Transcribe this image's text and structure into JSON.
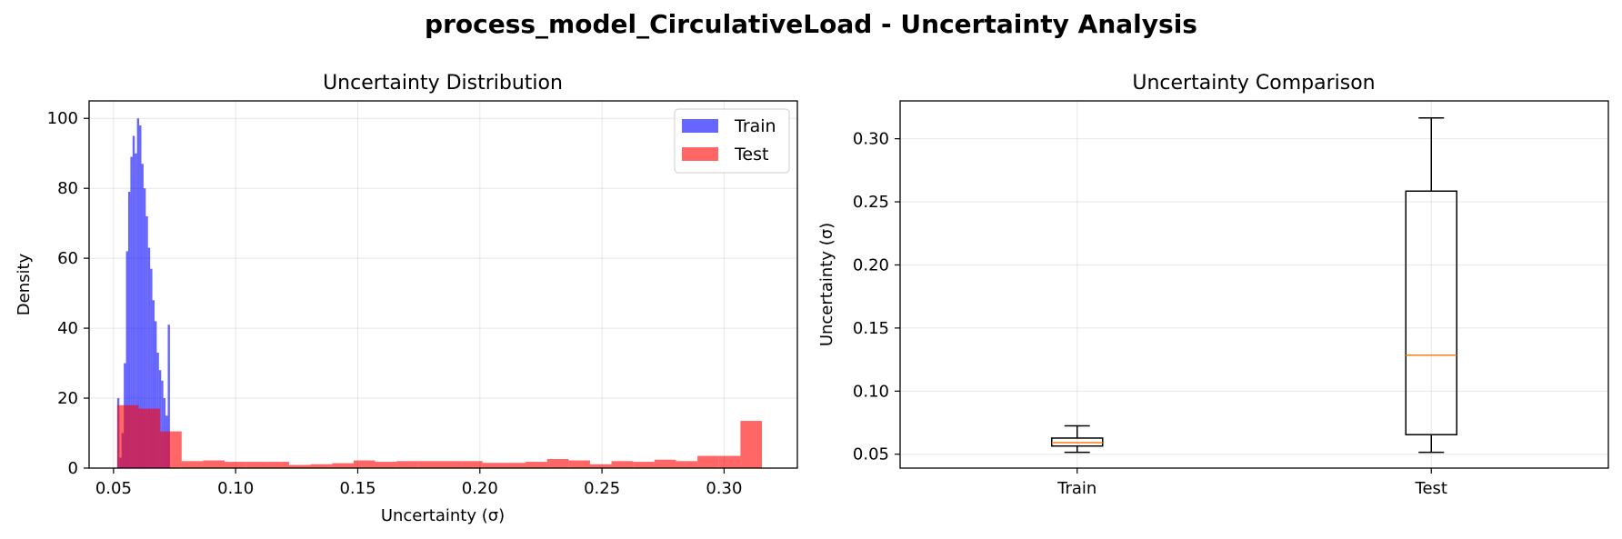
{
  "figure": {
    "suptitle": "process_model_CirculativeLoad - Uncertainty Analysis"
  },
  "chart_data": [
    {
      "type": "histogram",
      "title": "Uncertainty Distribution",
      "xlabel": "Uncertainty (σ)",
      "ylabel": "Density",
      "xlim": [
        0.04,
        0.33
      ],
      "ylim": [
        0,
        105
      ],
      "xticks": [
        "0.05",
        "0.10",
        "0.15",
        "0.20",
        "0.25",
        "0.30"
      ],
      "yticks": [
        "0",
        "20",
        "40",
        "60",
        "80",
        "100"
      ],
      "grid": true,
      "legend": "top-right",
      "series": [
        {
          "name": "Train",
          "color": "#0000ff",
          "alpha": 0.6,
          "bins": [
            [
              0.0515,
              0.0524,
              20
            ],
            [
              0.0524,
              0.0533,
              3
            ],
            [
              0.0533,
              0.0542,
              10
            ],
            [
              0.0542,
              0.0551,
              30
            ],
            [
              0.0551,
              0.056,
              62
            ],
            [
              0.056,
              0.0569,
              79
            ],
            [
              0.0569,
              0.0578,
              89
            ],
            [
              0.0578,
              0.0587,
              95
            ],
            [
              0.0587,
              0.0596,
              90
            ],
            [
              0.0596,
              0.0605,
              100
            ],
            [
              0.0605,
              0.0614,
              98
            ],
            [
              0.0614,
              0.0623,
              87
            ],
            [
              0.0623,
              0.0632,
              80
            ],
            [
              0.0632,
              0.0641,
              72
            ],
            [
              0.0641,
              0.065,
              63
            ],
            [
              0.065,
              0.0659,
              57
            ],
            [
              0.0659,
              0.0668,
              48
            ],
            [
              0.0668,
              0.0677,
              42
            ],
            [
              0.0677,
              0.0686,
              33
            ],
            [
              0.0686,
              0.0695,
              28
            ],
            [
              0.0695,
              0.0704,
              25
            ],
            [
              0.0704,
              0.0713,
              20
            ],
            [
              0.0713,
              0.0722,
              15
            ],
            [
              0.0722,
              0.0731,
              41
            ]
          ]
        },
        {
          "name": "Test",
          "color": "#ff0000",
          "alpha": 0.6,
          "bins": [
            [
              0.0515,
              0.0603,
              18
            ],
            [
              0.0603,
              0.0691,
              17
            ],
            [
              0.0691,
              0.0779,
              10.5
            ],
            [
              0.0779,
              0.0867,
              2
            ],
            [
              0.0867,
              0.0955,
              2.2
            ],
            [
              0.0955,
              0.1043,
              1.8
            ],
            [
              0.1043,
              0.1131,
              1.8
            ],
            [
              0.1131,
              0.1219,
              1.8
            ],
            [
              0.1219,
              0.1307,
              0.9
            ],
            [
              0.1307,
              0.1395,
              1.1
            ],
            [
              0.1395,
              0.1483,
              1.4
            ],
            [
              0.1483,
              0.1571,
              2.2
            ],
            [
              0.1571,
              0.1659,
              1.8
            ],
            [
              0.1659,
              0.1747,
              2.0
            ],
            [
              0.1747,
              0.1835,
              2.0
            ],
            [
              0.1835,
              0.1923,
              2.0
            ],
            [
              0.1923,
              0.2011,
              2.0
            ],
            [
              0.2011,
              0.2099,
              1.5
            ],
            [
              0.2099,
              0.2187,
              1.5
            ],
            [
              0.2187,
              0.2275,
              1.8
            ],
            [
              0.2275,
              0.2363,
              2.6
            ],
            [
              0.2363,
              0.2451,
              2.2
            ],
            [
              0.2451,
              0.2539,
              1.1
            ],
            [
              0.2539,
              0.2627,
              2.0
            ],
            [
              0.2627,
              0.2715,
              1.8
            ],
            [
              0.2715,
              0.2803,
              2.4
            ],
            [
              0.2803,
              0.2891,
              2.0
            ],
            [
              0.2891,
              0.2979,
              3.5
            ],
            [
              0.2979,
              0.3067,
              3.5
            ],
            [
              0.3067,
              0.3155,
              13.5
            ]
          ]
        }
      ]
    },
    {
      "type": "box",
      "title": "Uncertainty Comparison",
      "xlabel": "",
      "ylabel": "Uncertainty (σ)",
      "ylim": [
        0.039,
        0.33
      ],
      "yticks": [
        "0.05",
        "0.10",
        "0.15",
        "0.20",
        "0.25",
        "0.30"
      ],
      "categories": [
        "Train",
        "Test"
      ],
      "grid": true,
      "median_color": "#ff7f0e",
      "boxes": [
        {
          "name": "Train",
          "whisker_low": 0.0515,
          "q1": 0.0565,
          "median": 0.0592,
          "q3": 0.0628,
          "whisker_high": 0.0725
        },
        {
          "name": "Test",
          "whisker_low": 0.0515,
          "q1": 0.0655,
          "median": 0.1285,
          "q3": 0.2585,
          "whisker_high": 0.3165
        }
      ]
    }
  ]
}
